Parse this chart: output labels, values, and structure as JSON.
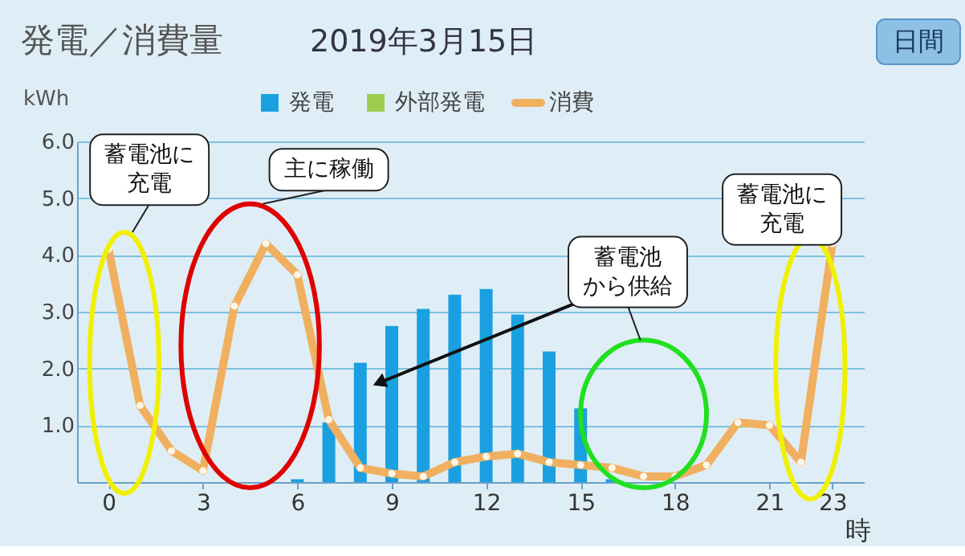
{
  "chart_data": {
    "type": "bar",
    "title": "発電／消費量",
    "subtitle": "2019年3月15日",
    "xlabel": "時",
    "ylabel": "kWh",
    "x": [
      0,
      1,
      2,
      3,
      4,
      5,
      6,
      7,
      8,
      9,
      10,
      11,
      12,
      13,
      14,
      15,
      16,
      17,
      18,
      19,
      20,
      21,
      22,
      23
    ],
    "series": [
      {
        "name": "発電",
        "color": "#1aa0e0",
        "values": [
          null,
          null,
          null,
          null,
          null,
          null,
          0.05,
          1.05,
          2.1,
          2.75,
          3.05,
          3.3,
          3.4,
          2.95,
          2.3,
          1.3,
          0.05,
          null,
          null,
          null,
          null,
          null,
          null,
          null
        ]
      },
      {
        "name": "外部発電",
        "color": "#9ccc50",
        "values": [
          null,
          null,
          null,
          null,
          null,
          null,
          null,
          null,
          null,
          null,
          null,
          null,
          null,
          null,
          null,
          null,
          null,
          null,
          null,
          null,
          null,
          null,
          null,
          null
        ]
      },
      {
        "name": "消費",
        "type": "line",
        "color": "#f0b060",
        "marker": "circle",
        "line_style": "solid",
        "values": [
          4.1,
          1.35,
          0.55,
          0.2,
          3.1,
          4.2,
          3.65,
          1.1,
          0.25,
          0.15,
          0.1,
          0.35,
          0.45,
          0.5,
          0.35,
          0.3,
          0.25,
          0.1,
          0.1,
          0.3,
          1.05,
          1.0,
          0.35,
          4.2
        ]
      }
    ],
    "xlim": [
      -1,
      24
    ],
    "xticks": [
      0,
      3,
      6,
      9,
      12,
      15,
      18,
      21,
      23
    ],
    "ylim": [
      0,
      6
    ],
    "yticks": [
      {
        "value": 1,
        "label": "1.0"
      },
      {
        "value": 2,
        "label": "2.0"
      },
      {
        "value": 3,
        "label": "3.0"
      },
      {
        "value": 4,
        "label": "4.0"
      },
      {
        "value": 5,
        "label": "5.0"
      },
      {
        "value": 6,
        "label": "6.0"
      }
    ],
    "grid": "y",
    "legend": "top",
    "annotations": [
      {
        "text": "蓄電池に充電",
        "x": 0,
        "y": 4.1
      },
      {
        "text": "主に稼働",
        "x": 5,
        "y": 4.2
      },
      {
        "text": "蓄電池から供給",
        "x": 8.6,
        "y": 1.75
      },
      {
        "text": "蓄電池に充電",
        "x": 23,
        "y": 4.2
      },
      "日間"
    ]
  }
}
